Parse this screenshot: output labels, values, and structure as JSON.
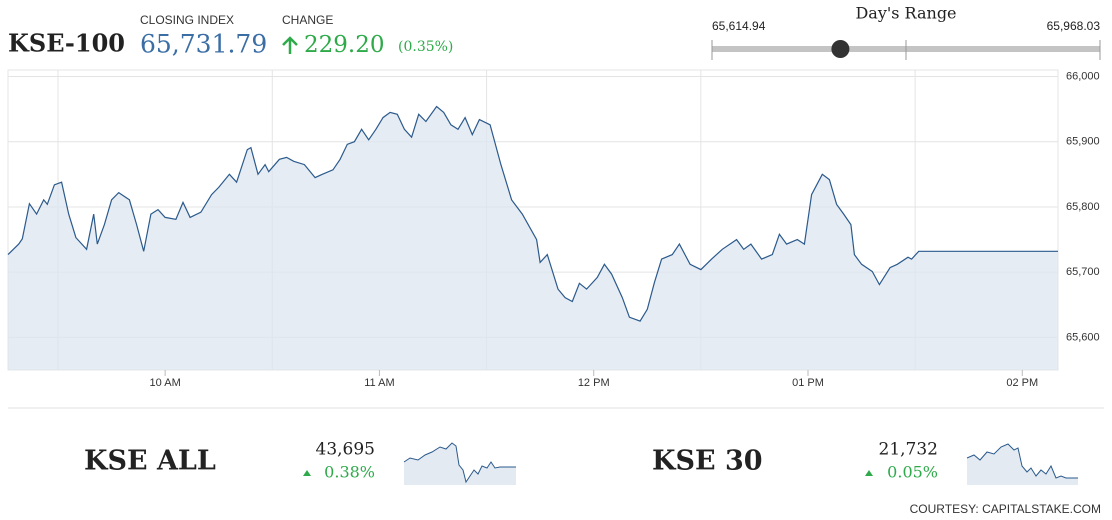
{
  "header": {
    "title": "KSE-100",
    "closing_label": "CLOSING INDEX",
    "closing": {
      "value": 65731.79,
      "label": "65,731.79"
    },
    "change_label": "CHANGE",
    "change": "229.20",
    "change_pct": "(0.35%)"
  },
  "days_range": {
    "title": "Day's Range",
    "low": {
      "value": 65614.94,
      "label": "65,614.94"
    },
    "high": {
      "value": 65968.03,
      "label": "65,968.03"
    }
  },
  "chart_data": {
    "type": "line",
    "color": "#2b5a8c",
    "grid": true,
    "x": [
      556,
      559,
      560,
      562,
      564,
      566,
      567,
      569,
      571,
      573,
      575,
      578,
      580,
      581,
      583,
      585,
      587,
      590,
      592,
      594,
      596,
      598,
      600,
      603,
      605,
      607,
      610,
      613,
      615,
      618,
      620,
      623,
      624,
      626,
      628,
      629,
      632,
      634,
      636,
      639,
      642,
      644,
      647,
      649,
      651,
      653,
      655,
      657,
      659,
      661,
      663,
      665,
      667,
      669,
      671,
      673,
      676,
      678,
      680,
      682,
      684,
      686,
      688,
      691,
      694,
      697,
      700,
      704,
      705,
      707,
      710,
      712,
      714,
      716,
      718,
      721,
      723,
      725,
      728,
      730,
      733,
      735,
      737,
      739,
      742,
      744,
      747,
      750,
      753,
      756,
      760,
      762,
      764,
      767,
      770,
      772,
      774,
      777,
      779,
      781,
      784,
      786,
      788,
      790,
      792,
      793,
      795,
      798,
      800,
      803,
      805,
      808,
      809,
      811,
      850
    ],
    "values": [
      65727,
      65743,
      65751,
      65805,
      65789,
      65811,
      65804,
      65834,
      65838,
      65789,
      65753,
      65735,
      65789,
      65743,
      65773,
      65811,
      65822,
      65811,
      65773,
      65732,
      65789,
      65796,
      65784,
      65781,
      65807,
      65784,
      65792,
      65819,
      65830,
      65850,
      65838,
      65888,
      65891,
      65850,
      65865,
      65854,
      65873,
      65876,
      65870,
      65865,
      65845,
      65850,
      65857,
      65873,
      65896,
      65900,
      65919,
      65903,
      65919,
      65937,
      65945,
      65942,
      65919,
      65907,
      65942,
      65931,
      65954,
      65945,
      65926,
      65919,
      65937,
      65911,
      65934,
      65926,
      65865,
      65811,
      65789,
      65750,
      65715,
      65727,
      65674,
      65661,
      65655,
      65683,
      65674,
      65692,
      65712,
      65697,
      65661,
      65631,
      65625,
      65643,
      65684,
      65720,
      65727,
      65743,
      65712,
      65704,
      65720,
      65735,
      65750,
      65735,
      65743,
      65720,
      65727,
      65758,
      65743,
      65750,
      65743,
      65819,
      65850,
      65842,
      65804,
      65789,
      65773,
      65727,
      65712,
      65701,
      65681,
      65707,
      65712,
      65723,
      65720,
      65732,
      65732
    ],
    "xlim": [
      556,
      850
    ],
    "xticks": [
      {
        "value": 600,
        "label": "10 AM"
      },
      {
        "value": 660,
        "label": "11 AM"
      },
      {
        "value": 720,
        "label": "12 PM"
      },
      {
        "value": 780,
        "label": "01 PM"
      },
      {
        "value": 840,
        "label": "02 PM"
      }
    ],
    "ylim": [
      65550,
      66010
    ],
    "yticks": [
      {
        "value": 65600,
        "label": "65,600"
      },
      {
        "value": 65700,
        "label": "65,700"
      },
      {
        "value": 65800,
        "label": "65,800"
      },
      {
        "value": 65900,
        "label": "65,900"
      },
      {
        "value": 66000,
        "label": "66,000"
      }
    ]
  },
  "indices": [
    {
      "name": "KSE ALL",
      "value": "43,695",
      "change": "0.38%"
    },
    {
      "name": "KSE 30",
      "value": "21,732",
      "change": "0.05%"
    }
  ],
  "footer": "COURTESY: CAPITALSTAKE.COM"
}
